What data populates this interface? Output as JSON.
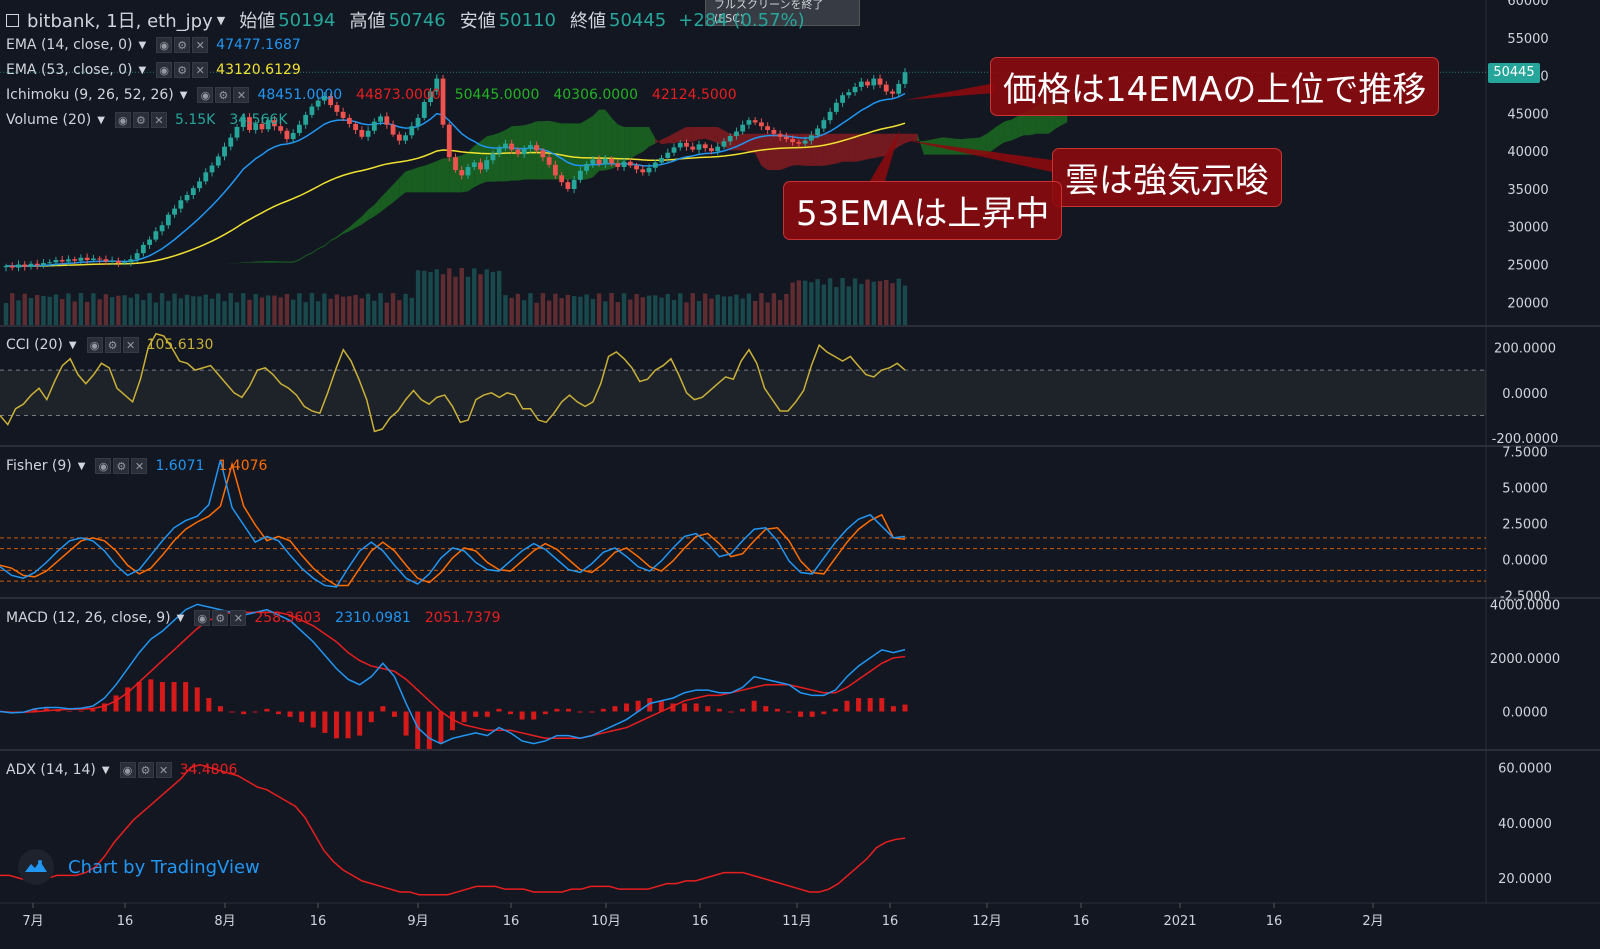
{
  "header": {
    "symbol": "bitbank, 1日, eth_jpy",
    "open_label": "始値",
    "open": "50194",
    "high_label": "高値",
    "high": "50746",
    "low_label": "安値",
    "low": "50110",
    "close_label": "終値",
    "close": "50445",
    "change": "+284 (0.57%)",
    "esc_tip": "フルスクリーンを終了 (ESC)"
  },
  "legends": {
    "ema14": {
      "label": "EMA (14, close, 0)",
      "value": "47477.1687",
      "color": "#2196f3"
    },
    "ema53": {
      "label": "EMA (53, close, 0)",
      "value": "43120.6129",
      "color": "#f0e130"
    },
    "ichimoku": {
      "label": "Ichimoku (9, 26, 52, 26)",
      "values": [
        "48451.0000",
        "44873.0000",
        "50445.0000",
        "40306.0000",
        "42124.5000"
      ],
      "colors": [
        "#2196f3",
        "#e91e1e",
        "#22b322",
        "#22b322",
        "#e91e1e"
      ]
    },
    "volume": {
      "label": "Volume (20)",
      "values": [
        "5.15K",
        "34.566K"
      ],
      "color": "#26a69a"
    },
    "cci": {
      "label": "CCI (20)",
      "value": "105.6130",
      "color": "#c9b037"
    },
    "fisher": {
      "label": "Fisher (9)",
      "values": [
        "1.6071",
        "1.4076"
      ],
      "colors": [
        "#2196f3",
        "#ff6d00"
      ]
    },
    "macd": {
      "label": "MACD (12, 26, close, 9)",
      "values": [
        "258.3603",
        "2310.0981",
        "2051.7379"
      ],
      "colors": [
        "#e91e1e",
        "#2196f3",
        "#e91e1e"
      ]
    },
    "adx": {
      "label": "ADX (14, 14)",
      "value": "34.4806",
      "color": "#e91e1e"
    }
  },
  "annotations": {
    "callout1": "価格は14EMAの上位で推移",
    "callout2": "雲は強気示唆",
    "callout3": "53EMAは上昇中"
  },
  "price_tag": "50445",
  "watermark": "Chart by TradingView",
  "chart_data": [
    {
      "type": "candlestick",
      "title": "bitbank, 1日, eth_jpy",
      "x_ticks": [
        "7月",
        "16",
        "8月",
        "16",
        "9月",
        "16",
        "10月",
        "16",
        "11月",
        "16",
        "12月",
        "16",
        "2021",
        "16",
        "2月"
      ],
      "y_ticks": [
        "60000",
        "55000",
        "50000",
        "45000",
        "40000",
        "35000",
        "30000",
        "25000",
        "20000"
      ],
      "ylim": [
        17000,
        60000
      ],
      "close": [
        24800,
        24600,
        25000,
        24700,
        25100,
        24900,
        25200,
        25300,
        25600,
        25400,
        25700,
        25500,
        25900,
        25600,
        25800,
        25700,
        25400,
        25500,
        25200,
        25300,
        25700,
        26500,
        27600,
        28300,
        29400,
        30200,
        31600,
        32400,
        33500,
        34200,
        35100,
        36000,
        37200,
        38100,
        39300,
        40600,
        41800,
        43200,
        44500,
        42800,
        43600,
        42900,
        44100,
        43300,
        42700,
        41600,
        42400,
        43500,
        44800,
        45900,
        46700,
        47300,
        46100,
        45200,
        44400,
        43600,
        42800,
        41900,
        42700,
        43900,
        44600,
        43500,
        42200,
        41400,
        42100,
        43300,
        44400,
        46500,
        47900,
        49600,
        43500,
        39200,
        37500,
        36800,
        37900,
        38500,
        37600,
        38800,
        39700,
        40400,
        41000,
        40200,
        39600,
        40300,
        40800,
        40100,
        39200,
        38200,
        36800,
        35900,
        35000,
        36200,
        37400,
        38300,
        38900,
        38300,
        39000,
        38400,
        37900,
        38600,
        38100,
        37600,
        37200,
        37800,
        38500,
        39100,
        39800,
        40500,
        41100,
        40600,
        40200,
        40900,
        40400,
        40000,
        40600,
        41300,
        42000,
        42600,
        43500,
        44100,
        43800,
        43300,
        42800,
        42300,
        41900,
        41600,
        41200,
        41000,
        41400,
        42100,
        43000,
        44100,
        45200,
        46400,
        47400,
        47800,
        48500,
        49200,
        48700,
        49600,
        48800,
        47900,
        47600,
        48900,
        50445
      ]
    },
    {
      "type": "line",
      "title": "CCI (20)",
      "y_ticks": [
        "200.0000",
        "0.0000",
        "-200.0000"
      ],
      "ylim": [
        -230,
        290
      ],
      "band": [
        -100,
        100
      ],
      "values": [
        -100,
        -140,
        -70,
        -50,
        -10,
        20,
        -30,
        50,
        120,
        150,
        80,
        40,
        80,
        130,
        110,
        20,
        -10,
        -40,
        60,
        200,
        260,
        250,
        200,
        140,
        130,
        100,
        110,
        120,
        80,
        40,
        0,
        -20,
        30,
        100,
        110,
        80,
        40,
        20,
        -10,
        -60,
        -80,
        -90,
        0,
        100,
        190,
        140,
        60,
        -30,
        -170,
        -160,
        -110,
        -80,
        -30,
        10,
        -30,
        -50,
        -20,
        -10,
        -60,
        -130,
        -120,
        -30,
        -10,
        0,
        -20,
        0,
        -10,
        -70,
        -70,
        -120,
        -130,
        -90,
        -40,
        -10,
        -40,
        -60,
        -40,
        40,
        160,
        180,
        150,
        110,
        50,
        60,
        100,
        120,
        150,
        80,
        0,
        -30,
        -20,
        10,
        40,
        70,
        60,
        140,
        190,
        130,
        20,
        -30,
        -80,
        -80,
        -40,
        10,
        120,
        210,
        180,
        160,
        140,
        160,
        120,
        80,
        70,
        100,
        110,
        130,
        100
      ]
    },
    {
      "type": "line",
      "title": "Fisher (9)",
      "y_ticks": [
        "7.5000",
        "5.0000",
        "2.5000",
        "0.0000",
        "-2.5000"
      ],
      "ylim": [
        -2.6,
        7.8
      ],
      "reference_lines": [
        1.5,
        0.75,
        -0.75,
        -1.5
      ],
      "series": [
        {
          "name": "Fisher",
          "values": [
            -0.5,
            -1.1,
            -1.3,
            -0.9,
            -0.2,
            0.6,
            1.3,
            1.5,
            1.3,
            0.6,
            -0.4,
            -1.1,
            -0.7,
            0.3,
            1.3,
            2.2,
            2.7,
            3.0,
            3.8,
            6.9,
            3.6,
            2.4,
            1.2,
            1.6,
            1.3,
            0.3,
            -0.6,
            -1.3,
            -1.8,
            -1.9,
            -0.6,
            0.6,
            1.2,
            0.6,
            -0.4,
            -1.3,
            -1.7,
            -1.0,
            0.1,
            0.8,
            0.6,
            -0.2,
            -0.7,
            -0.8,
            -0.1,
            0.6,
            1.1,
            0.7,
            0.0,
            -0.7,
            -0.9,
            -0.3,
            0.5,
            0.8,
            0.2,
            -0.5,
            -0.8,
            -0.1,
            0.8,
            1.6,
            1.8,
            1.1,
            0.2,
            0.4,
            1.3,
            2.1,
            2.2,
            1.3,
            -0.1,
            -0.9,
            -1.0,
            0.1,
            1.2,
            2.1,
            2.8,
            3.1,
            2.3,
            1.5,
            1.6
          ]
        },
        {
          "name": "Trigger",
          "values": [
            -0.4,
            -0.6,
            -1.1,
            -1.2,
            -0.8,
            -0.1,
            0.6,
            1.3,
            1.5,
            1.3,
            0.6,
            -0.4,
            -1.0,
            -0.6,
            0.3,
            1.3,
            2.1,
            2.6,
            3.0,
            3.7,
            6.6,
            3.7,
            2.4,
            1.3,
            1.6,
            1.3,
            0.3,
            -0.6,
            -1.3,
            -1.8,
            -1.8,
            -0.6,
            0.6,
            1.2,
            0.6,
            -0.4,
            -1.3,
            -1.6,
            -0.9,
            0.1,
            0.8,
            0.6,
            -0.2,
            -0.7,
            -0.8,
            -0.1,
            0.6,
            1.1,
            0.7,
            0.0,
            -0.7,
            -0.9,
            -0.3,
            0.5,
            0.8,
            0.2,
            -0.5,
            -0.8,
            -0.1,
            0.8,
            1.6,
            1.8,
            1.1,
            0.2,
            0.4,
            1.3,
            2.1,
            2.2,
            1.3,
            -0.1,
            -0.9,
            -1.0,
            0.1,
            1.2,
            2.1,
            2.7,
            3.1,
            1.5,
            1.4
          ]
        }
      ]
    },
    {
      "type": "line",
      "title": "MACD (12, 26, close, 9)",
      "y_ticks": [
        "4000.0000",
        "2000.0000",
        "0.0000"
      ],
      "ylim": [
        -1400,
        4200
      ],
      "series": [
        {
          "name": "MACD",
          "values": [
            0,
            -50,
            -30,
            100,
            150,
            150,
            100,
            120,
            200,
            500,
            1000,
            1600,
            2200,
            2700,
            3000,
            3400,
            3800,
            4000,
            3900,
            3800,
            3700,
            3600,
            3700,
            3800,
            3600,
            3400,
            3000,
            2600,
            2100,
            1600,
            1200,
            1000,
            1300,
            1800,
            1300,
            300,
            -600,
            -1000,
            -1200,
            -1000,
            -900,
            -800,
            -900,
            -600,
            -800,
            -1100,
            -1200,
            -1100,
            -900,
            -900,
            -1000,
            -900,
            -700,
            -500,
            -300,
            0,
            300,
            400,
            500,
            700,
            800,
            800,
            700,
            700,
            900,
            1300,
            1200,
            1100,
            1000,
            700,
            600,
            600,
            800,
            1300,
            1700,
            2000,
            2300,
            2200,
            2310
          ]
        },
        {
          "name": "Signal",
          "values": [
            0,
            -30,
            -30,
            -10,
            30,
            60,
            80,
            90,
            110,
            200,
            400,
            700,
            1100,
            1500,
            1900,
            2300,
            2700,
            3100,
            3400,
            3600,
            3700,
            3700,
            3700,
            3700,
            3700,
            3600,
            3400,
            3200,
            2900,
            2600,
            2200,
            1900,
            1700,
            1600,
            1500,
            1200,
            800,
            400,
            0,
            -300,
            -500,
            -600,
            -700,
            -700,
            -700,
            -800,
            -900,
            -1000,
            -1000,
            -1000,
            -1000,
            -900,
            -800,
            -700,
            -600,
            -400,
            -200,
            0,
            200,
            400,
            500,
            600,
            600,
            700,
            800,
            900,
            1000,
            1000,
            1000,
            900,
            800,
            700,
            700,
            900,
            1200,
            1500,
            1800,
            2000,
            2051
          ]
        },
        {
          "name": "Histogram",
          "values": [
            0,
            -20,
            0,
            110,
            120,
            90,
            20,
            30,
            90,
            300,
            600,
            900,
            1100,
            1200,
            1100,
            1100,
            1100,
            900,
            500,
            200,
            0,
            -100,
            0,
            100,
            -100,
            -200,
            -400,
            -600,
            -800,
            -1000,
            -1000,
            -900,
            -400,
            200,
            -200,
            -900,
            -1400,
            -1400,
            -1200,
            -700,
            -400,
            -200,
            -200,
            100,
            -100,
            -300,
            -300,
            -100,
            100,
            100,
            0,
            0,
            100,
            200,
            300,
            400,
            500,
            400,
            300,
            300,
            300,
            200,
            100,
            0,
            100,
            400,
            200,
            100,
            0,
            -200,
            -200,
            -100,
            100,
            400,
            500,
            500,
            500,
            200,
            258
          ]
        }
      ]
    },
    {
      "type": "line",
      "title": "ADX (14, 14)",
      "y_ticks": [
        "60.0000",
        "40.0000",
        "20.0000"
      ],
      "ylim": [
        11,
        66
      ],
      "values": [
        21,
        21,
        20,
        19,
        19,
        20,
        21,
        21,
        21,
        22,
        24,
        28,
        33,
        37,
        41,
        44,
        47,
        50,
        53,
        56,
        60,
        61,
        60,
        59,
        58,
        57,
        55,
        53,
        52,
        50,
        48,
        46,
        42,
        36,
        30,
        26,
        23,
        21,
        19,
        18,
        17,
        16,
        15,
        15,
        14,
        14,
        14,
        14,
        15,
        16,
        17,
        17,
        17,
        16,
        16,
        16,
        15,
        15,
        15,
        15,
        16,
        16,
        17,
        17,
        17,
        16,
        16,
        16,
        16,
        17,
        18,
        18,
        19,
        19,
        20,
        21,
        22,
        22,
        22,
        21,
        20,
        19,
        18,
        17,
        16,
        15,
        15,
        16,
        18,
        21,
        24,
        27,
        31,
        33,
        34,
        34.48
      ]
    }
  ]
}
